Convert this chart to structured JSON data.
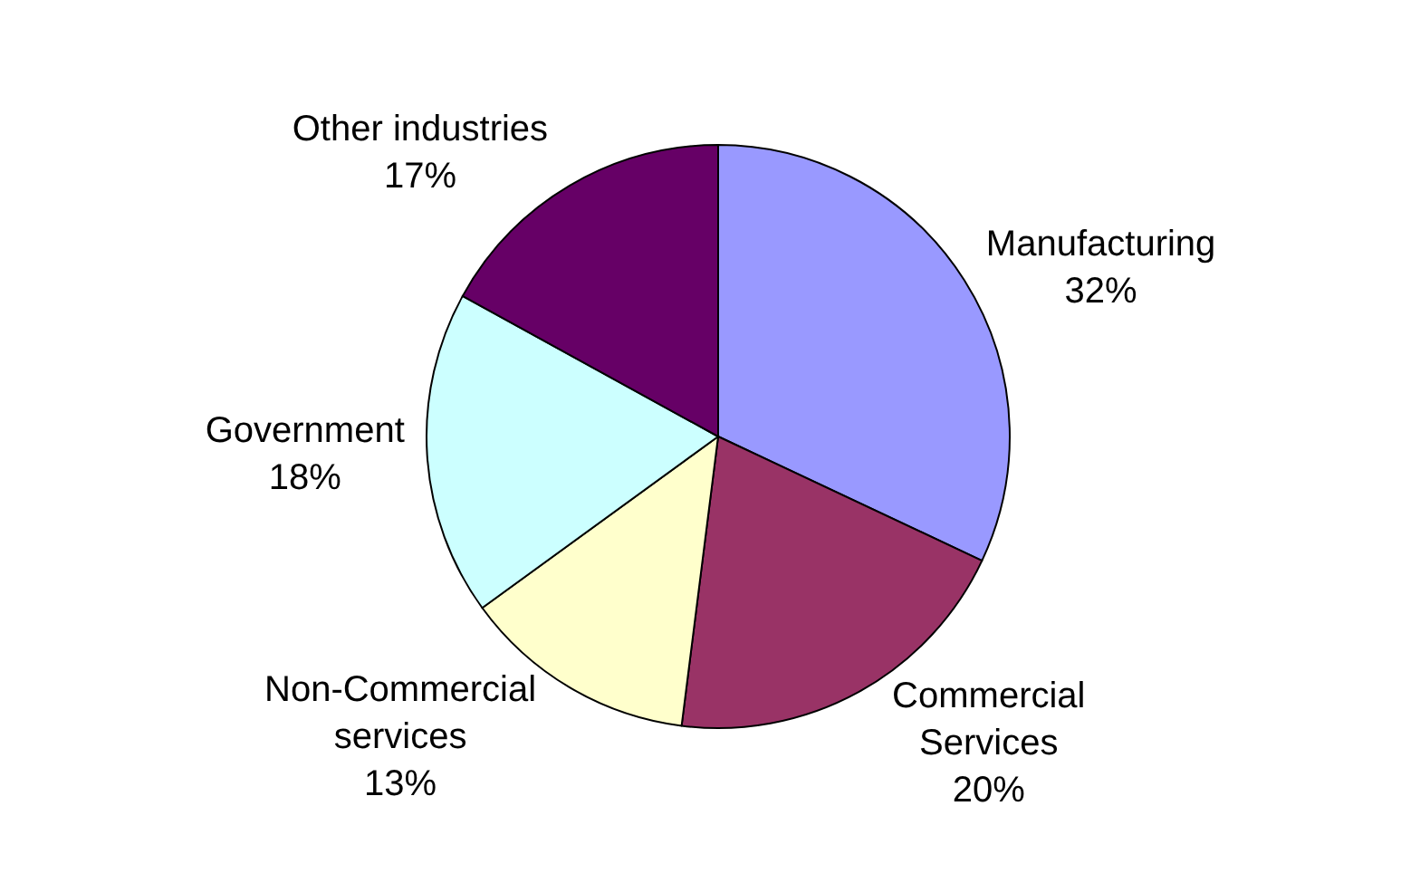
{
  "chart_data": {
    "type": "pie",
    "categories": [
      "Manufacturing",
      "Commercial\nServices",
      "Non-Commercial\nservices",
      "Government",
      "Other industries"
    ],
    "values": [
      32,
      20,
      13,
      18,
      17
    ],
    "value_labels": [
      "32%",
      "20%",
      "13%",
      "18%",
      "17%"
    ],
    "colors": [
      "#9999ff",
      "#993366",
      "#ffffcc",
      "#ccffff",
      "#660066"
    ],
    "legend": false
  }
}
